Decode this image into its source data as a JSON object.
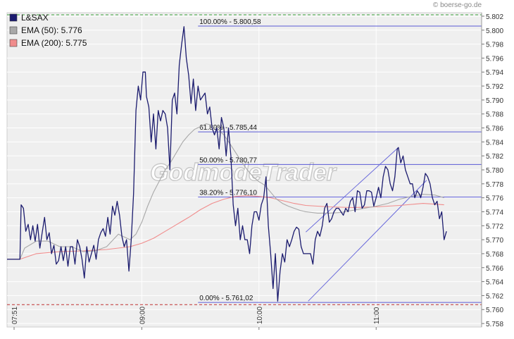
{
  "credit": "© boerse-go.de",
  "watermark": "GodmodeTrader",
  "colors": {
    "price": "#1b1b6e",
    "ema50": "#a8a8a8",
    "ema200": "#f08c8c",
    "fib": "#5a5ad6",
    "channel": "#6b6bdb",
    "plot_bg": "#efefef",
    "grid": "#ffffff",
    "upper_bound": "#3aa03a",
    "lower_bound": "#c03030"
  },
  "legend": [
    {
      "label": "L&SAX",
      "color": "#1b1b6e"
    },
    {
      "label": "EMA (50): 5.776",
      "color": "#a8a8a8"
    },
    {
      "label": "EMA (200): 5.775",
      "color": "#f08c8c"
    }
  ],
  "chart_data": {
    "type": "line",
    "x_unit": "hours (time of day)",
    "xlim": [
      7.85,
      11.9
    ],
    "ylim": [
      5.7575,
      5.8025
    ],
    "y_ticks": [
      "5.758",
      "5.760",
      "5.762",
      "5.764",
      "5.766",
      "5.768",
      "5.770",
      "5.772",
      "5.774",
      "5.776",
      "5.778",
      "5.780",
      "5.782",
      "5.784",
      "5.786",
      "5.788",
      "5.790",
      "5.792",
      "5.794",
      "5.796",
      "5.798",
      "5.800",
      "5.802"
    ],
    "y_tick_values": [
      5.758,
      5.76,
      5.762,
      5.764,
      5.766,
      5.768,
      5.77,
      5.772,
      5.774,
      5.776,
      5.778,
      5.78,
      5.782,
      5.784,
      5.786,
      5.788,
      5.79,
      5.792,
      5.794,
      5.796,
      5.798,
      5.8,
      5.802
    ],
    "x_ticks": [
      {
        "label": "07:51",
        "x": 7.85
      },
      {
        "label": "09:00",
        "x": 9.0
      },
      {
        "label": "10:00",
        "x": 10.0
      },
      {
        "label": "11:00",
        "x": 11.0
      }
    ],
    "reference_lines": [
      {
        "value": 5.8022,
        "style": "dashed",
        "color": "#3aa03a"
      },
      {
        "value": 5.7607,
        "style": "dashed",
        "color": "#c03030"
      }
    ],
    "fibonacci": [
      {
        "label": "100.00% - 5.800,58",
        "value": 5.80058,
        "x_start": 9.48
      },
      {
        "label": "61.80% - 5.785,44",
        "value": 5.78544,
        "x_start": 9.48
      },
      {
        "label": "50.00% - 5.780,77",
        "value": 5.78077,
        "x_start": 9.48
      },
      {
        "label": "38.20% - 5.776,10",
        "value": 5.7761,
        "x_start": 9.48
      },
      {
        "label": "0.00% - 5.761,02",
        "value": 5.76102,
        "x_start": 9.48
      }
    ],
    "channel_lines": [
      {
        "x1": 10.4,
        "y1": 5.7711,
        "x2": 11.19,
        "y2": 5.7832
      },
      {
        "x1": 10.42,
        "y1": 5.7612,
        "x2": 11.43,
        "y2": 5.7785
      }
    ],
    "series": [
      {
        "name": "L&SAX",
        "color": "#1b1b6e",
        "points": [
          [
            7.85,
            5.7672
          ],
          [
            7.96,
            5.7672
          ],
          [
            7.97,
            5.775
          ],
          [
            7.99,
            5.7745
          ],
          [
            8.01,
            5.7712
          ],
          [
            8.03,
            5.7722
          ],
          [
            8.05,
            5.77
          ],
          [
            8.07,
            5.772
          ],
          [
            8.09,
            5.7698
          ],
          [
            8.11,
            5.7722
          ],
          [
            8.13,
            5.7688
          ],
          [
            8.15,
            5.771
          ],
          [
            8.17,
            5.7732
          ],
          [
            8.19,
            5.77
          ],
          [
            8.21,
            5.771
          ],
          [
            8.23,
            5.768
          ],
          [
            8.25,
            5.7692
          ],
          [
            8.27,
            5.7665
          ],
          [
            8.29,
            5.767
          ],
          [
            8.31,
            5.769
          ],
          [
            8.33,
            5.767
          ],
          [
            8.35,
            5.769
          ],
          [
            8.37,
            5.7662
          ],
          [
            8.39,
            5.769
          ],
          [
            8.41,
            5.769
          ],
          [
            8.43,
            5.7665
          ],
          [
            8.45,
            5.77
          ],
          [
            8.47,
            5.769
          ],
          [
            8.49,
            5.7672
          ],
          [
            8.51,
            5.7645
          ],
          [
            8.53,
            5.769
          ],
          [
            8.55,
            5.7668
          ],
          [
            8.57,
            5.768
          ],
          [
            8.59,
            5.7692
          ],
          [
            8.61,
            5.7672
          ],
          [
            8.63,
            5.77
          ],
          [
            8.65,
            5.771
          ],
          [
            8.67,
            5.7716
          ],
          [
            8.69,
            5.7705
          ],
          [
            8.71,
            5.7732
          ],
          [
            8.73,
            5.7708
          ],
          [
            8.75,
            5.7748
          ],
          [
            8.77,
            5.7735
          ],
          [
            8.79,
            5.7755
          ],
          [
            8.81,
            5.7735
          ],
          [
            8.83,
            5.7705
          ],
          [
            8.85,
            5.769
          ],
          [
            8.87,
            5.77
          ],
          [
            8.89,
            5.7655
          ],
          [
            8.91,
            5.77
          ],
          [
            8.93,
            5.7766
          ],
          [
            8.95,
            5.7885
          ],
          [
            8.97,
            5.792
          ],
          [
            8.99,
            5.79
          ],
          [
            9.01,
            5.794
          ],
          [
            9.03,
            5.794
          ],
          [
            9.04,
            5.7905
          ],
          [
            9.06,
            5.789
          ],
          [
            9.08,
            5.784
          ],
          [
            9.1,
            5.788
          ],
          [
            9.12,
            5.783
          ],
          [
            9.14,
            5.7885
          ],
          [
            9.16,
            5.787
          ],
          [
            9.18,
            5.7885
          ],
          [
            9.2,
            5.788
          ],
          [
            9.22,
            5.786
          ],
          [
            9.24,
            5.78
          ],
          [
            9.26,
            5.79
          ],
          [
            9.28,
            5.791
          ],
          [
            9.3,
            5.788
          ],
          [
            9.32,
            5.795
          ],
          [
            9.34,
            5.798
          ],
          [
            9.36,
            5.8005
          ],
          [
            9.38,
            5.796
          ],
          [
            9.4,
            5.7935
          ],
          [
            9.42,
            5.7895
          ],
          [
            9.44,
            5.793
          ],
          [
            9.46,
            5.7885
          ],
          [
            9.48,
            5.792
          ],
          [
            9.5,
            5.79
          ],
          [
            9.52,
            5.7905
          ],
          [
            9.54,
            5.791
          ],
          [
            9.56,
            5.788
          ],
          [
            9.58,
            5.789
          ],
          [
            9.6,
            5.786
          ],
          [
            9.62,
            5.785
          ],
          [
            9.64,
            5.786
          ],
          [
            9.66,
            5.783
          ],
          [
            9.68,
            5.7875
          ],
          [
            9.7,
            5.786
          ],
          [
            9.72,
            5.782
          ],
          [
            9.74,
            5.786
          ],
          [
            9.76,
            5.782
          ],
          [
            9.78,
            5.775
          ],
          [
            9.8,
            5.772
          ],
          [
            9.82,
            5.7745
          ],
          [
            9.84,
            5.77
          ],
          [
            9.86,
            5.772
          ],
          [
            9.88,
            5.77
          ],
          [
            9.9,
            5.77
          ],
          [
            9.92,
            5.768
          ],
          [
            9.94,
            5.772
          ],
          [
            9.96,
            5.774
          ],
          [
            9.98,
            5.774
          ],
          [
            10.0,
            5.7728
          ],
          [
            10.02,
            5.775
          ],
          [
            10.04,
            5.776
          ],
          [
            10.06,
            5.779
          ],
          [
            10.08,
            5.772
          ],
          [
            10.1,
            5.768
          ],
          [
            10.12,
            5.763
          ],
          [
            10.14,
            5.768
          ],
          [
            10.16,
            5.7612
          ],
          [
            10.18,
            5.7655
          ],
          [
            10.2,
            5.768
          ],
          [
            10.22,
            5.7668
          ],
          [
            10.24,
            5.77
          ],
          [
            10.26,
            5.769
          ],
          [
            10.28,
            5.77
          ],
          [
            10.3,
            5.7712
          ],
          [
            10.32,
            5.7718
          ],
          [
            10.34,
            5.7715
          ],
          [
            10.36,
            5.769
          ],
          [
            10.38,
            5.768
          ],
          [
            10.4,
            5.768
          ],
          [
            10.42,
            5.768
          ],
          [
            10.44,
            5.768
          ],
          [
            10.46,
            5.7665
          ],
          [
            10.48,
            5.77
          ],
          [
            10.5,
            5.7712
          ],
          [
            10.52,
            5.7705
          ],
          [
            10.54,
            5.772
          ],
          [
            10.56,
            5.7745
          ],
          [
            10.58,
            5.7752
          ],
          [
            10.6,
            5.7725
          ],
          [
            10.62,
            5.773
          ],
          [
            10.64,
            5.774
          ],
          [
            10.66,
            5.7745
          ],
          [
            10.68,
            5.7745
          ],
          [
            10.7,
            5.774
          ],
          [
            10.72,
            5.7735
          ],
          [
            10.74,
            5.7745
          ],
          [
            10.76,
            5.774
          ],
          [
            10.78,
            5.7755
          ],
          [
            10.8,
            5.776
          ],
          [
            10.82,
            5.774
          ],
          [
            10.84,
            5.777
          ],
          [
            10.86,
            5.7768
          ],
          [
            10.88,
            5.7745
          ],
          [
            10.9,
            5.775
          ],
          [
            10.92,
            5.777
          ],
          [
            10.94,
            5.777
          ],
          [
            10.96,
            5.7768
          ],
          [
            10.98,
            5.7748
          ],
          [
            11.0,
            5.776
          ],
          [
            11.02,
            5.7775
          ],
          [
            11.04,
            5.776
          ],
          [
            11.06,
            5.779
          ],
          [
            11.08,
            5.7805
          ],
          [
            11.1,
            5.78
          ],
          [
            11.12,
            5.778
          ],
          [
            11.14,
            5.777
          ],
          [
            11.16,
            5.779
          ],
          [
            11.18,
            5.783
          ],
          [
            11.19,
            5.7832
          ],
          [
            11.21,
            5.781
          ],
          [
            11.23,
            5.782
          ],
          [
            11.25,
            5.78
          ],
          [
            11.27,
            5.779
          ],
          [
            11.29,
            5.778
          ],
          [
            11.31,
            5.778
          ],
          [
            11.33,
            5.776
          ],
          [
            11.35,
            5.777
          ],
          [
            11.37,
            5.7765
          ],
          [
            11.38,
            5.776
          ],
          [
            11.4,
            5.7775
          ],
          [
            11.42,
            5.7795
          ],
          [
            11.44,
            5.779
          ],
          [
            11.46,
            5.778
          ],
          [
            11.48,
            5.776
          ],
          [
            11.5,
            5.775
          ],
          [
            11.52,
            5.7755
          ],
          [
            11.54,
            5.773
          ],
          [
            11.56,
            5.774
          ],
          [
            11.58,
            5.77
          ],
          [
            11.6,
            5.7712
          ]
        ]
      },
      {
        "name": "EMA (50): 5.776",
        "color": "#a8a8a8",
        "points": [
          [
            7.85,
            5.7672
          ],
          [
            7.96,
            5.7672
          ],
          [
            8.0,
            5.7688
          ],
          [
            8.1,
            5.7698
          ],
          [
            8.2,
            5.7698
          ],
          [
            8.3,
            5.769
          ],
          [
            8.4,
            5.769
          ],
          [
            8.5,
            5.7683
          ],
          [
            8.6,
            5.7684
          ],
          [
            8.7,
            5.769
          ],
          [
            8.8,
            5.7708
          ],
          [
            8.9,
            5.77
          ],
          [
            8.95,
            5.7708
          ],
          [
            9.0,
            5.7725
          ],
          [
            9.05,
            5.7748
          ],
          [
            9.1,
            5.7768
          ],
          [
            9.15,
            5.7784
          ],
          [
            9.2,
            5.78
          ],
          [
            9.25,
            5.7812
          ],
          [
            9.3,
            5.7826
          ],
          [
            9.35,
            5.784
          ],
          [
            9.4,
            5.785
          ],
          [
            9.45,
            5.7858
          ],
          [
            9.5,
            5.7862
          ],
          [
            9.55,
            5.7866
          ],
          [
            9.6,
            5.7864
          ],
          [
            9.65,
            5.7858
          ],
          [
            9.7,
            5.785
          ],
          [
            9.75,
            5.7838
          ],
          [
            9.8,
            5.7825
          ],
          [
            9.85,
            5.7812
          ],
          [
            9.9,
            5.78
          ],
          [
            9.95,
            5.779
          ],
          [
            10.0,
            5.7783
          ],
          [
            10.05,
            5.7778
          ],
          [
            10.1,
            5.7768
          ],
          [
            10.15,
            5.7758
          ],
          [
            10.2,
            5.7752
          ],
          [
            10.25,
            5.7748
          ],
          [
            10.3,
            5.7745
          ],
          [
            10.35,
            5.7742
          ],
          [
            10.4,
            5.774
          ],
          [
            10.5,
            5.7738
          ],
          [
            10.6,
            5.7738
          ],
          [
            10.7,
            5.7739
          ],
          [
            10.8,
            5.7742
          ],
          [
            10.9,
            5.7745
          ],
          [
            11.0,
            5.7748
          ],
          [
            11.1,
            5.7752
          ],
          [
            11.2,
            5.7758
          ],
          [
            11.3,
            5.7762
          ],
          [
            11.4,
            5.7765
          ],
          [
            11.5,
            5.7764
          ],
          [
            11.58,
            5.776
          ]
        ]
      },
      {
        "name": "EMA (200): 5.775",
        "color": "#f08c8c",
        "points": [
          [
            7.85,
            5.7672
          ],
          [
            7.96,
            5.7672
          ],
          [
            8.1,
            5.768
          ],
          [
            8.3,
            5.7683
          ],
          [
            8.5,
            5.7684
          ],
          [
            8.7,
            5.7686
          ],
          [
            8.9,
            5.769
          ],
          [
            9.0,
            5.7695
          ],
          [
            9.1,
            5.7702
          ],
          [
            9.2,
            5.7712
          ],
          [
            9.3,
            5.7722
          ],
          [
            9.4,
            5.7732
          ],
          [
            9.5,
            5.7743
          ],
          [
            9.6,
            5.7752
          ],
          [
            9.7,
            5.7758
          ],
          [
            9.8,
            5.7762
          ],
          [
            9.9,
            5.7763
          ],
          [
            10.0,
            5.7762
          ],
          [
            10.1,
            5.776
          ],
          [
            10.2,
            5.7756
          ],
          [
            10.3,
            5.7752
          ],
          [
            10.4,
            5.7749
          ],
          [
            10.6,
            5.7747
          ],
          [
            10.8,
            5.7746
          ],
          [
            11.0,
            5.7747
          ],
          [
            11.2,
            5.7749
          ],
          [
            11.4,
            5.7752
          ],
          [
            11.58,
            5.775
          ]
        ]
      }
    ]
  }
}
